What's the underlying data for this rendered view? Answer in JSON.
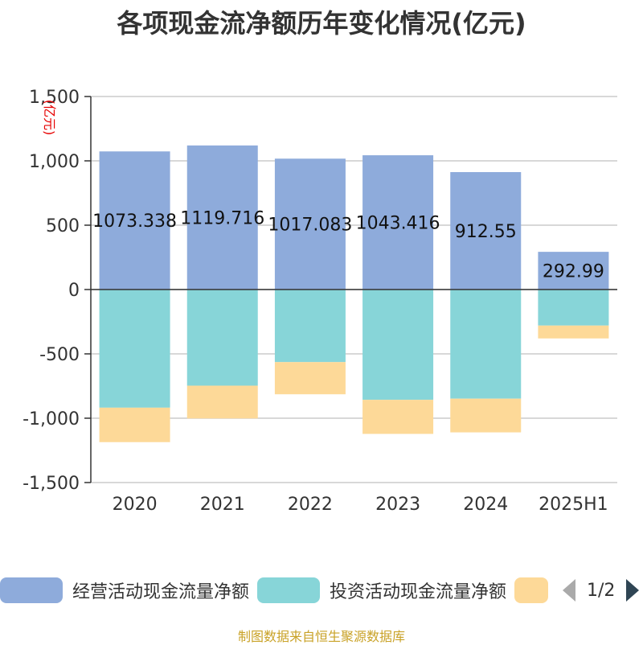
{
  "chart_data": {
    "type": "bar",
    "stacked": true,
    "title": "各项现金流净额历年变化情况(亿元)",
    "ylabel": "(亿元)",
    "ylim": [
      -1500,
      1500
    ],
    "yticks": [
      1500,
      1000,
      500,
      0,
      -500,
      -1000,
      -1500
    ],
    "ytick_labels": [
      "1,500",
      "1,000",
      "500",
      "0",
      "-500",
      "-1,000",
      "-1,500"
    ],
    "categories": [
      "2020",
      "2021",
      "2022",
      "2023",
      "2024",
      "2025H1"
    ],
    "grid": true,
    "legend_position": "bottom",
    "series": [
      {
        "name": "经营活动现金流量净额",
        "color": "#8eabdb",
        "values": [
          1073.338,
          1119.716,
          1017.083,
          1043.416,
          912.55,
          292.99
        ],
        "labels": [
          "1073.338",
          "1119.716",
          "1017.083",
          "1043.416",
          "912.55",
          "292.99"
        ]
      },
      {
        "name": "投资活动现金流量净额",
        "color": "#87d5d8",
        "values": [
          -918,
          -747,
          -564,
          -857,
          -848,
          -280
        ]
      },
      {
        "name": "",
        "color": "#fdd998",
        "values": [
          -268,
          -255,
          -250,
          -265,
          -262,
          -100
        ]
      }
    ]
  },
  "legend": {
    "items": [
      {
        "label": "经营活动现金流量净额",
        "color": "#8eabdb"
      },
      {
        "label": "投资活动现金流量净额",
        "color": "#87d5d8"
      },
      {
        "label": "",
        "color": "#fdd998"
      }
    ],
    "page_text": "1/2"
  },
  "source_note": "制图数据来自恒生聚源数据库"
}
